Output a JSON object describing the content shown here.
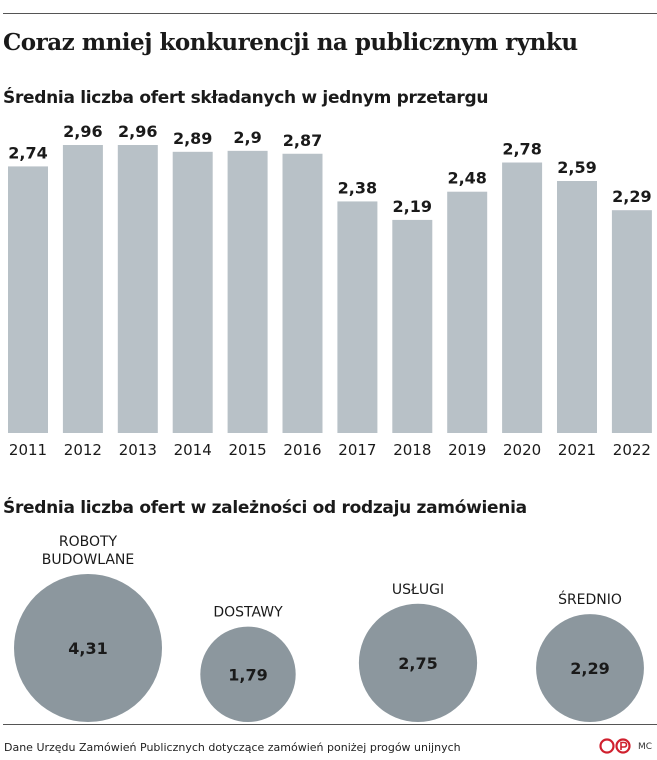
{
  "title": "Coraz mniej konkurencji na publicznym rynku",
  "source": "Dane Urzędu Zamówień Publicznych dotyczące zamówień poniżej progów unijnych",
  "author": "MC",
  "colors": {
    "bar": "#b8c1c7",
    "bubble": "#8c979e",
    "text": "#1a1a1a"
  },
  "chart_data": [
    {
      "type": "bar",
      "title": "Średnia liczba ofert składanych w jednym przetargu",
      "categories": [
        "2011",
        "2012",
        "2013",
        "2014",
        "2015",
        "2016",
        "2017",
        "2018",
        "2019",
        "2020",
        "2021",
        "2022"
      ],
      "values": [
        2.74,
        2.96,
        2.96,
        2.89,
        2.9,
        2.87,
        2.38,
        2.19,
        2.48,
        2.78,
        2.59,
        2.29
      ],
      "value_labels": [
        "2,74",
        "2,96",
        "2,96",
        "2,89",
        "2,9",
        "2,87",
        "2,38",
        "2,19",
        "2,48",
        "2,78",
        "2,59",
        "2,29"
      ],
      "ylim": [
        0,
        2.96
      ]
    },
    {
      "type": "bubble",
      "title": "Średnia liczba ofert w zależności od rodzaju zamówienia",
      "categories": [
        [
          "ROBOTY",
          "BUDOWLANE"
        ],
        [
          "DOSTAWY"
        ],
        [
          "USŁUGI"
        ],
        [
          "ŚREDNIO"
        ]
      ],
      "values": [
        4.31,
        1.79,
        2.75,
        2.29
      ],
      "value_labels": [
        "4,31",
        "1,79",
        "2,75",
        "2,29"
      ]
    }
  ]
}
